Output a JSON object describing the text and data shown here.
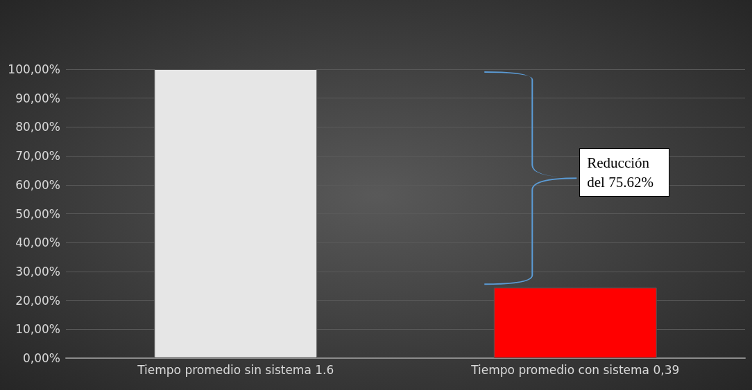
{
  "chart_data": {
    "type": "bar",
    "categories": [
      "Tiempo promedio sin sistema 1.6",
      "Tiempo promedio con sistema 0,39"
    ],
    "values": [
      100,
      24.4
    ],
    "colors": [
      "#e6e6e6",
      "#ff0000"
    ],
    "ylim": [
      0,
      100
    ],
    "yticks": [
      {
        "value": 0,
        "label": "0,00%"
      },
      {
        "value": 10,
        "label": "10,00%"
      },
      {
        "value": 20,
        "label": "20,00%"
      },
      {
        "value": 30,
        "label": "30,00%"
      },
      {
        "value": 40,
        "label": "40,00%"
      },
      {
        "value": 50,
        "label": "50,00%"
      },
      {
        "value": 60,
        "label": "60,00%"
      },
      {
        "value": 70,
        "label": "70,00%"
      },
      {
        "value": 80,
        "label": "80,00%"
      },
      {
        "value": 90,
        "label": "90,00%"
      },
      {
        "value": 100,
        "label": "100,00%"
      }
    ],
    "grid": "y",
    "annotations": [
      "Reducción del 75.62%"
    ]
  }
}
